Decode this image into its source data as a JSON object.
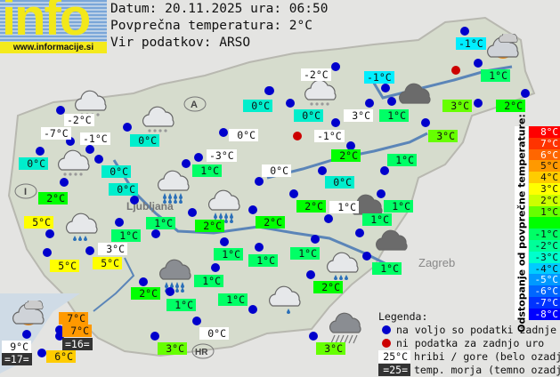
{
  "logo": {
    "text": "info",
    "url": "www.informacije.si"
  },
  "header": {
    "date_line": "Datum: 20.11.2025 ura: 06:50",
    "avg_line": "Povprečna temperatura: 2°C",
    "source_line": "Vir podatkov: ARSO"
  },
  "colors": {
    "white": "#ffffff",
    "sea": "#333333",
    "dev_plus5": "#ff9900",
    "dev_plus4": "#ffcc00",
    "dev_plus3": "#ffff00",
    "dev_plus1": "#66ff00",
    "dev_0": "#00ff00",
    "dev_minus1": "#00ff66",
    "dev_minus2": "#00eecc",
    "dev_minus3": "#00eeff",
    "dot_available": "#0000cc",
    "dot_missing": "#cc0000"
  },
  "stations": [
    {
      "temp": "-2°C",
      "kind": "white"
    },
    {
      "temp": "-7°C",
      "kind": "white"
    },
    {
      "temp": "-1°C",
      "kind": "white"
    },
    {
      "temp": "0°C",
      "kind": "dev_minus2"
    },
    {
      "temp": "0°C",
      "kind": "dev_minus2"
    },
    {
      "temp": "0°C",
      "kind": "dev_minus2"
    },
    {
      "temp": "2°C",
      "kind": "dev_0"
    },
    {
      "temp": "0°C",
      "kind": "dev_minus2"
    },
    {
      "temp": "0°C",
      "kind": "dev_minus2"
    },
    {
      "temp": "0°C",
      "kind": "white"
    },
    {
      "temp": "-3°C",
      "kind": "white"
    },
    {
      "temp": "1°C",
      "kind": "dev_minus1"
    },
    {
      "temp": "0°C",
      "kind": "white"
    },
    {
      "temp": "-1°C",
      "kind": "dev_minus3"
    },
    {
      "temp": "1°C",
      "kind": "dev_minus1"
    },
    {
      "temp": "2°C",
      "kind": "dev_0"
    },
    {
      "temp": "3°C",
      "kind": "dev_plus1"
    },
    {
      "temp": "-2°C",
      "kind": "white"
    },
    {
      "temp": "0°C",
      "kind": "dev_minus2"
    },
    {
      "temp": "-1°C",
      "kind": "dev_minus3"
    },
    {
      "temp": "3°C",
      "kind": "white"
    },
    {
      "temp": "1°C",
      "kind": "dev_minus1"
    },
    {
      "temp": "3°C",
      "kind": "dev_plus1"
    },
    {
      "temp": "-1°C",
      "kind": "white"
    },
    {
      "temp": "2°C",
      "kind": "dev_0"
    },
    {
      "temp": "1°C",
      "kind": "dev_minus1"
    },
    {
      "temp": "0°C",
      "kind": "dev_minus2"
    },
    {
      "temp": "2°C",
      "kind": "dev_0"
    },
    {
      "temp": "1°C",
      "kind": "white"
    },
    {
      "temp": "1°C",
      "kind": "dev_minus1"
    },
    {
      "temp": "1°C",
      "kind": "dev_minus1"
    },
    {
      "temp": "5°C",
      "kind": "dev_plus3"
    },
    {
      "temp": "1°C",
      "kind": "dev_minus1"
    },
    {
      "temp": "1°C",
      "kind": "dev_minus1"
    },
    {
      "temp": "2°C",
      "kind": "dev_0"
    },
    {
      "temp": "2°C",
      "kind": "dev_0"
    },
    {
      "temp": "5°C",
      "kind": "dev_plus3"
    },
    {
      "temp": "3°C",
      "kind": "white"
    },
    {
      "temp": "5°C",
      "kind": "dev_plus3"
    },
    {
      "temp": "1°C",
      "kind": "dev_minus1"
    },
    {
      "temp": "1°C",
      "kind": "dev_minus1"
    },
    {
      "temp": "1°C",
      "kind": "dev_minus1"
    },
    {
      "temp": "2°C",
      "kind": "dev_0"
    },
    {
      "temp": "1°C",
      "kind": "dev_minus1"
    },
    {
      "temp": "2°C",
      "kind": "dev_0"
    },
    {
      "temp": "1°C",
      "kind": "dev_minus1"
    },
    {
      "temp": "1°C",
      "kind": "dev_minus1"
    },
    {
      "temp": "0°C",
      "kind": "white"
    },
    {
      "temp": "3°C",
      "kind": "dev_plus1"
    },
    {
      "temp": "3°C",
      "kind": "dev_plus1"
    },
    {
      "temp": "7°C",
      "kind": "dev_plus5"
    },
    {
      "temp": "7°C",
      "kind": "dev_plus5"
    },
    {
      "temp": "=16=",
      "kind": "sea"
    },
    {
      "temp": "9°C",
      "kind": "white"
    },
    {
      "temp": "=17=",
      "kind": "sea"
    },
    {
      "temp": "6°C",
      "kind": "dev_plus4"
    },
    {
      "temp": "1°C",
      "kind": "dev_minus1"
    }
  ],
  "missing_data_stations": 2,
  "weather_icons": [
    "snow-cloud",
    "snow-cloud",
    "snow-cloud",
    "rain-cloud",
    "rain-cloud",
    "sun-cloud",
    "snow-cloud",
    "dark-cloud",
    "dark-cloud",
    "dark-cloud",
    "light-rain-cloud",
    "heavy-rain-cloud",
    "light-rain-cloud",
    "drizzle-cloud",
    "storm-rain-cloud",
    "sun-cloud"
  ],
  "scale": {
    "title": "Odstopanje od povprečne temperature:",
    "rows": [
      {
        "label": "8°C",
        "color": "#ff0000",
        "fg": "#ffffff"
      },
      {
        "label": "7°C",
        "color": "#ff3300",
        "fg": "#ffffff"
      },
      {
        "label": "6°C",
        "color": "#ff6600",
        "fg": "#ffffff"
      },
      {
        "label": "5°C",
        "color": "#ff9900",
        "fg": "#111111"
      },
      {
        "label": "4°C",
        "color": "#ffcc00",
        "fg": "#111111"
      },
      {
        "label": "3°C",
        "color": "#ffff00",
        "fg": "#111111"
      },
      {
        "label": "2°C",
        "color": "#ccff00",
        "fg": "#111111"
      },
      {
        "label": "1°C",
        "color": "#66ff00",
        "fg": "#111111"
      },
      {
        "label": "",
        "color": "#00ff00",
        "fg": "#111111"
      },
      {
        "label": "-1°C",
        "color": "#00ff66",
        "fg": "#111111"
      },
      {
        "label": "-2°C",
        "color": "#00ff99",
        "fg": "#111111"
      },
      {
        "label": "-3°C",
        "color": "#00ffcc",
        "fg": "#111111"
      },
      {
        "label": "-4°C",
        "color": "#00ccff",
        "fg": "#111111"
      },
      {
        "label": "-5°C",
        "color": "#0099ff",
        "fg": "#ffffff"
      },
      {
        "label": "-6°C",
        "color": "#0066ff",
        "fg": "#ffffff"
      },
      {
        "label": "-7°C",
        "color": "#0033ff",
        "fg": "#ffffff"
      },
      {
        "label": "-8°C",
        "color": "#0000ff",
        "fg": "#ffffff"
      }
    ]
  },
  "map_labels": {
    "austria": "A",
    "italy": "I",
    "croatia": "HR",
    "ljubljana": "Ljubljana",
    "zagreb": "Zagreb"
  },
  "legend": {
    "title": "Legenda:",
    "available": "na voljo so podatki zadnje ure",
    "missing": "ni podatka za zadnjo uro",
    "mountain_sample": "25°C",
    "mountain": "hribi / gore (belo ozadje)",
    "sea_sample": "=25=",
    "sea": "temp. morja (temno ozadje)"
  }
}
